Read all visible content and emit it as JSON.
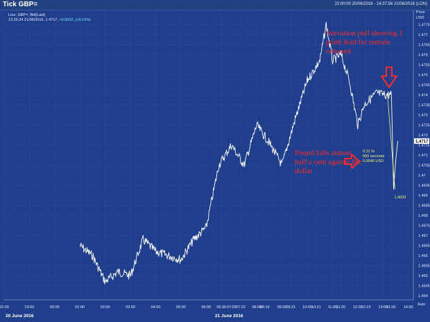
{
  "header": {
    "title": "Tick GBP=",
    "range": "22:00:00 20/06/2016 - 14:37:56 21/06/2016 (LON)"
  },
  "info": {
    "line1": "Line, GBP=, Bid(Last)",
    "line2_prefix": "13:35:34 21/06/2016, 1.4717,",
    "line2_change": "+0.0022, (+0.15%)"
  },
  "yaxis": {
    "title": "Price",
    "unit": "USD",
    "auto": "Auto",
    "ticks": [
      "1.4775",
      "1.477",
      "1.4765",
      "1.476",
      "1.4755",
      "1.475",
      "1.4745",
      "1.474",
      "1.4735",
      "1.473",
      "1.4725",
      "1.472",
      "1.4715",
      "1.471",
      "1.4705",
      "1.47",
      "1.4695",
      "1.469",
      "1.4685",
      "1.468",
      "1.4675",
      "1.467",
      "1.4665",
      "1.466",
      "1.4655",
      "1.465",
      "1.4645",
      "1.464"
    ],
    "current_label": "1.4717"
  },
  "xaxis": {
    "ticks": [
      "22:00",
      "23:00",
      "00:00",
      "01:00",
      "02:00",
      "03:00",
      "04:00",
      "05:00",
      "06:00",
      "06:36",
      "07:00",
      "07:22",
      "08:00",
      "08:19",
      "09:00",
      "09:21",
      "10:00",
      "10:21",
      "11:00",
      "11:20",
      "12:00",
      "12:19",
      "13:00",
      "13:18",
      "14:00"
    ],
    "date_labels": [
      "20 June 2016",
      "21 June 2016"
    ]
  },
  "annotations": {
    "top": "Survation poll showing 1 point lead for remain released",
    "bottom": "Pound falls almost half a cent against the dollar",
    "measure": [
      "0.31 %",
      "550 seconds",
      "0.0046 USD"
    ],
    "low_label": "1.4693"
  },
  "colors": {
    "background": "#1f3f8c",
    "grid": "#3c5ea8",
    "line": "#ffffff",
    "annotation": "#ff2b2b",
    "measure": "#f2ee7a"
  },
  "chart_data": {
    "type": "line",
    "title": "Tick GBP=",
    "series": [
      {
        "name": "GBP=",
        "x": [
          "01:00",
          "01:30",
          "02:00",
          "02:30",
          "03:00",
          "03:30",
          "04:00",
          "04:30",
          "05:00",
          "05:30",
          "06:00",
          "06:30",
          "07:00",
          "07:30",
          "08:00",
          "08:30",
          "09:00",
          "09:30",
          "10:00",
          "10:30",
          "10:45",
          "11:00",
          "11:20",
          "11:40",
          "12:00",
          "12:15",
          "12:30",
          "12:45",
          "13:00",
          "13:20",
          "13:25",
          "13:30",
          "13:35"
        ],
        "values": [
          1.4665,
          1.466,
          1.4647,
          1.4652,
          1.465,
          1.4668,
          1.4662,
          1.466,
          1.4658,
          1.4668,
          1.4674,
          1.4705,
          1.4715,
          1.4705,
          1.4725,
          1.4716,
          1.4705,
          1.4727,
          1.4747,
          1.4757,
          1.4775,
          1.4757,
          1.476,
          1.4747,
          1.4725,
          1.4735,
          1.4738,
          1.4741,
          1.474,
          1.474,
          1.4693,
          1.4707,
          1.4717
        ]
      }
    ],
    "ylim": [
      1.4638,
      1.4782
    ],
    "ylabel": "Price USD",
    "grid": true
  }
}
